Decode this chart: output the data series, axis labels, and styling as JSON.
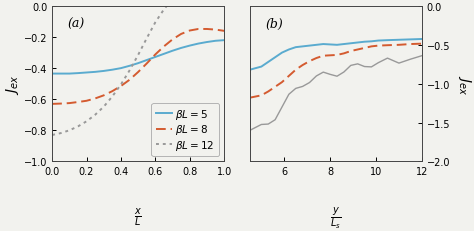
{
  "panel_a": {
    "label": "(a)",
    "xlim": [
      0,
      1
    ],
    "ylim": [
      -1,
      0
    ],
    "yticks": [
      0,
      -0.2,
      -0.4,
      -0.6,
      -0.8,
      -1.0
    ],
    "xticks": [
      0,
      0.2,
      0.4,
      0.6,
      0.8,
      1.0
    ],
    "curves": [
      {
        "beta_L": 5,
        "color": "#5aabcf",
        "linestyle": "solid",
        "lw": 1.4,
        "x": [
          0.0,
          0.05,
          0.1,
          0.15,
          0.2,
          0.25,
          0.3,
          0.35,
          0.4,
          0.45,
          0.5,
          0.55,
          0.6,
          0.65,
          0.7,
          0.75,
          0.8,
          0.85,
          0.9,
          0.95,
          1.0
        ],
        "y": [
          -0.435,
          -0.435,
          -0.435,
          -0.432,
          -0.428,
          -0.424,
          -0.418,
          -0.41,
          -0.4,
          -0.385,
          -0.368,
          -0.348,
          -0.328,
          -0.308,
          -0.288,
          -0.27,
          -0.255,
          -0.242,
          -0.232,
          -0.224,
          -0.22
        ]
      },
      {
        "beta_L": 8,
        "color": "#d45b30",
        "linestyle": "dashed",
        "lw": 1.4,
        "x": [
          0.0,
          0.05,
          0.1,
          0.15,
          0.2,
          0.25,
          0.3,
          0.35,
          0.4,
          0.45,
          0.5,
          0.55,
          0.6,
          0.65,
          0.7,
          0.75,
          0.8,
          0.85,
          0.9,
          0.95,
          1.0
        ],
        "y": [
          -0.63,
          -0.628,
          -0.625,
          -0.618,
          -0.61,
          -0.595,
          -0.575,
          -0.548,
          -0.515,
          -0.475,
          -0.425,
          -0.37,
          -0.312,
          -0.26,
          -0.215,
          -0.18,
          -0.158,
          -0.148,
          -0.148,
          -0.152,
          -0.16
        ]
      },
      {
        "beta_L": 12,
        "color": "#999999",
        "linestyle": "dotted",
        "lw": 1.4,
        "x": [
          0.0,
          0.05,
          0.1,
          0.15,
          0.2,
          0.25,
          0.3,
          0.35,
          0.4,
          0.45,
          0.5,
          0.55,
          0.6,
          0.65,
          0.7,
          0.75,
          0.8,
          0.85,
          0.9,
          0.95,
          1.0
        ],
        "y": [
          -0.83,
          -0.818,
          -0.8,
          -0.775,
          -0.742,
          -0.7,
          -0.648,
          -0.582,
          -0.505,
          -0.415,
          -0.315,
          -0.208,
          -0.105,
          -0.022,
          0.045,
          0.085,
          0.098,
          0.092,
          0.075,
          0.055,
          0.038
        ]
      }
    ]
  },
  "panel_b": {
    "label": "(b)",
    "xlim": [
      4.5,
      12
    ],
    "ylim": [
      -2,
      0
    ],
    "yticks": [
      0,
      -0.5,
      -1.0,
      -1.5,
      -2.0
    ],
    "xticks": [
      6,
      8,
      10,
      12
    ],
    "curves": [
      {
        "beta_L": 5,
        "color": "#5aabcf",
        "linestyle": "solid",
        "lw": 1.4,
        "x": [
          4.5,
          5.0,
          5.3,
          5.6,
          5.9,
          6.2,
          6.5,
          6.8,
          7.1,
          7.4,
          7.7,
          8.0,
          8.3,
          8.6,
          8.9,
          9.2,
          9.5,
          9.8,
          10.1,
          10.5,
          11.0,
          11.5,
          12.0
        ],
        "y": [
          -0.82,
          -0.78,
          -0.72,
          -0.66,
          -0.6,
          -0.56,
          -0.53,
          -0.52,
          -0.51,
          -0.5,
          -0.49,
          -0.495,
          -0.5,
          -0.49,
          -0.48,
          -0.47,
          -0.46,
          -0.455,
          -0.445,
          -0.44,
          -0.435,
          -0.43,
          -0.425
        ]
      },
      {
        "beta_L": 8,
        "color": "#d45b30",
        "linestyle": "dashed",
        "lw": 1.4,
        "x": [
          4.5,
          5.0,
          5.3,
          5.6,
          5.9,
          6.2,
          6.5,
          6.8,
          7.1,
          7.4,
          7.7,
          8.0,
          8.3,
          8.6,
          8.9,
          9.2,
          9.5,
          9.8,
          10.1,
          10.5,
          11.0,
          11.5,
          12.0
        ],
        "y": [
          -1.18,
          -1.15,
          -1.1,
          -1.04,
          -0.98,
          -0.9,
          -0.82,
          -0.76,
          -0.71,
          -0.67,
          -0.64,
          -0.635,
          -0.63,
          -0.61,
          -0.58,
          -0.56,
          -0.54,
          -0.52,
          -0.51,
          -0.505,
          -0.5,
          -0.49,
          -0.485
        ]
      },
      {
        "beta_L": 12,
        "color": "#999999",
        "linestyle": "solid",
        "lw": 1.0,
        "x": [
          4.5,
          5.0,
          5.3,
          5.6,
          5.9,
          6.2,
          6.5,
          6.8,
          7.1,
          7.4,
          7.7,
          8.0,
          8.3,
          8.6,
          8.9,
          9.2,
          9.5,
          9.8,
          10.1,
          10.5,
          11.0,
          11.5,
          12.0
        ],
        "y": [
          -1.6,
          -1.56,
          -1.5,
          -1.42,
          -1.3,
          -1.18,
          -1.08,
          -1.0,
          -0.95,
          -0.92,
          -0.895,
          -0.88,
          -0.86,
          -0.83,
          -0.8,
          -0.78,
          -0.76,
          -0.74,
          -0.73,
          -0.715,
          -0.7,
          -0.685,
          -0.675
        ],
        "osc_amp": 0.045,
        "osc_period": 1.4
      }
    ]
  },
  "bg_color": "#f2f2ee",
  "tick_fontsize": 7,
  "label_fontsize": 9,
  "legend_fontsize": 7.5
}
